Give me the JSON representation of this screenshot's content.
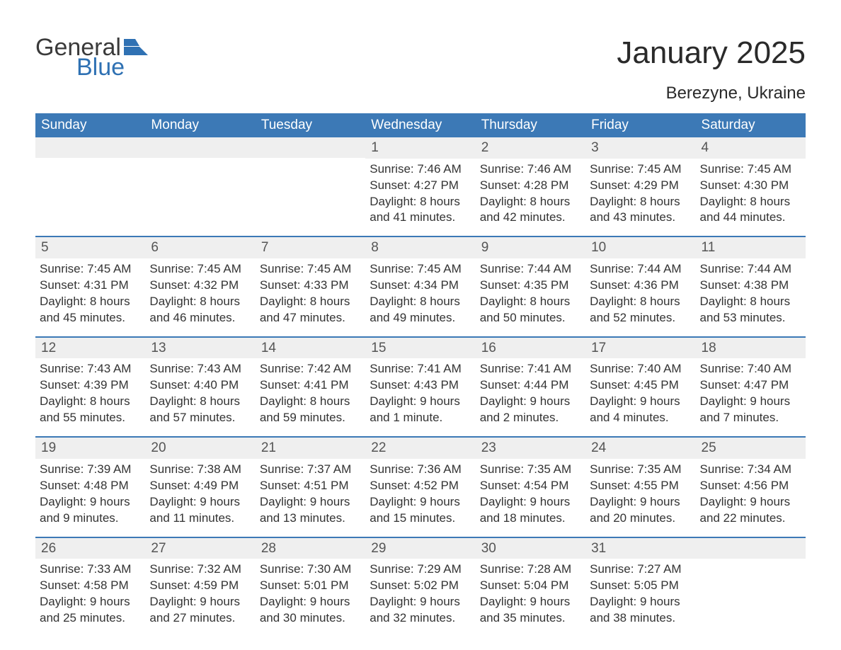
{
  "brand": {
    "word1": "General",
    "word2": "Blue",
    "accent": "#2f71b3"
  },
  "title": "January 2025",
  "location": "Berezyne, Ukraine",
  "colors": {
    "header_bg": "#3c79b6",
    "header_text": "#ffffff",
    "daynum_bg": "#efefef",
    "text": "#333333",
    "rule": "#3c79b6",
    "page_bg": "#ffffff"
  },
  "day_names": [
    "Sunday",
    "Monday",
    "Tuesday",
    "Wednesday",
    "Thursday",
    "Friday",
    "Saturday"
  ],
  "weeks": [
    [
      {
        "n": "",
        "sr": "",
        "ss": "",
        "dl1": "",
        "dl2": ""
      },
      {
        "n": "",
        "sr": "",
        "ss": "",
        "dl1": "",
        "dl2": ""
      },
      {
        "n": "",
        "sr": "",
        "ss": "",
        "dl1": "",
        "dl2": ""
      },
      {
        "n": "1",
        "sr": "Sunrise: 7:46 AM",
        "ss": "Sunset: 4:27 PM",
        "dl1": "Daylight: 8 hours",
        "dl2": "and 41 minutes."
      },
      {
        "n": "2",
        "sr": "Sunrise: 7:46 AM",
        "ss": "Sunset: 4:28 PM",
        "dl1": "Daylight: 8 hours",
        "dl2": "and 42 minutes."
      },
      {
        "n": "3",
        "sr": "Sunrise: 7:45 AM",
        "ss": "Sunset: 4:29 PM",
        "dl1": "Daylight: 8 hours",
        "dl2": "and 43 minutes."
      },
      {
        "n": "4",
        "sr": "Sunrise: 7:45 AM",
        "ss": "Sunset: 4:30 PM",
        "dl1": "Daylight: 8 hours",
        "dl2": "and 44 minutes."
      }
    ],
    [
      {
        "n": "5",
        "sr": "Sunrise: 7:45 AM",
        "ss": "Sunset: 4:31 PM",
        "dl1": "Daylight: 8 hours",
        "dl2": "and 45 minutes."
      },
      {
        "n": "6",
        "sr": "Sunrise: 7:45 AM",
        "ss": "Sunset: 4:32 PM",
        "dl1": "Daylight: 8 hours",
        "dl2": "and 46 minutes."
      },
      {
        "n": "7",
        "sr": "Sunrise: 7:45 AM",
        "ss": "Sunset: 4:33 PM",
        "dl1": "Daylight: 8 hours",
        "dl2": "and 47 minutes."
      },
      {
        "n": "8",
        "sr": "Sunrise: 7:45 AM",
        "ss": "Sunset: 4:34 PM",
        "dl1": "Daylight: 8 hours",
        "dl2": "and 49 minutes."
      },
      {
        "n": "9",
        "sr": "Sunrise: 7:44 AM",
        "ss": "Sunset: 4:35 PM",
        "dl1": "Daylight: 8 hours",
        "dl2": "and 50 minutes."
      },
      {
        "n": "10",
        "sr": "Sunrise: 7:44 AM",
        "ss": "Sunset: 4:36 PM",
        "dl1": "Daylight: 8 hours",
        "dl2": "and 52 minutes."
      },
      {
        "n": "11",
        "sr": "Sunrise: 7:44 AM",
        "ss": "Sunset: 4:38 PM",
        "dl1": "Daylight: 8 hours",
        "dl2": "and 53 minutes."
      }
    ],
    [
      {
        "n": "12",
        "sr": "Sunrise: 7:43 AM",
        "ss": "Sunset: 4:39 PM",
        "dl1": "Daylight: 8 hours",
        "dl2": "and 55 minutes."
      },
      {
        "n": "13",
        "sr": "Sunrise: 7:43 AM",
        "ss": "Sunset: 4:40 PM",
        "dl1": "Daylight: 8 hours",
        "dl2": "and 57 minutes."
      },
      {
        "n": "14",
        "sr": "Sunrise: 7:42 AM",
        "ss": "Sunset: 4:41 PM",
        "dl1": "Daylight: 8 hours",
        "dl2": "and 59 minutes."
      },
      {
        "n": "15",
        "sr": "Sunrise: 7:41 AM",
        "ss": "Sunset: 4:43 PM",
        "dl1": "Daylight: 9 hours",
        "dl2": "and 1 minute."
      },
      {
        "n": "16",
        "sr": "Sunrise: 7:41 AM",
        "ss": "Sunset: 4:44 PM",
        "dl1": "Daylight: 9 hours",
        "dl2": "and 2 minutes."
      },
      {
        "n": "17",
        "sr": "Sunrise: 7:40 AM",
        "ss": "Sunset: 4:45 PM",
        "dl1": "Daylight: 9 hours",
        "dl2": "and 4 minutes."
      },
      {
        "n": "18",
        "sr": "Sunrise: 7:40 AM",
        "ss": "Sunset: 4:47 PM",
        "dl1": "Daylight: 9 hours",
        "dl2": "and 7 minutes."
      }
    ],
    [
      {
        "n": "19",
        "sr": "Sunrise: 7:39 AM",
        "ss": "Sunset: 4:48 PM",
        "dl1": "Daylight: 9 hours",
        "dl2": "and 9 minutes."
      },
      {
        "n": "20",
        "sr": "Sunrise: 7:38 AM",
        "ss": "Sunset: 4:49 PM",
        "dl1": "Daylight: 9 hours",
        "dl2": "and 11 minutes."
      },
      {
        "n": "21",
        "sr": "Sunrise: 7:37 AM",
        "ss": "Sunset: 4:51 PM",
        "dl1": "Daylight: 9 hours",
        "dl2": "and 13 minutes."
      },
      {
        "n": "22",
        "sr": "Sunrise: 7:36 AM",
        "ss": "Sunset: 4:52 PM",
        "dl1": "Daylight: 9 hours",
        "dl2": "and 15 minutes."
      },
      {
        "n": "23",
        "sr": "Sunrise: 7:35 AM",
        "ss": "Sunset: 4:54 PM",
        "dl1": "Daylight: 9 hours",
        "dl2": "and 18 minutes."
      },
      {
        "n": "24",
        "sr": "Sunrise: 7:35 AM",
        "ss": "Sunset: 4:55 PM",
        "dl1": "Daylight: 9 hours",
        "dl2": "and 20 minutes."
      },
      {
        "n": "25",
        "sr": "Sunrise: 7:34 AM",
        "ss": "Sunset: 4:56 PM",
        "dl1": "Daylight: 9 hours",
        "dl2": "and 22 minutes."
      }
    ],
    [
      {
        "n": "26",
        "sr": "Sunrise: 7:33 AM",
        "ss": "Sunset: 4:58 PM",
        "dl1": "Daylight: 9 hours",
        "dl2": "and 25 minutes."
      },
      {
        "n": "27",
        "sr": "Sunrise: 7:32 AM",
        "ss": "Sunset: 4:59 PM",
        "dl1": "Daylight: 9 hours",
        "dl2": "and 27 minutes."
      },
      {
        "n": "28",
        "sr": "Sunrise: 7:30 AM",
        "ss": "Sunset: 5:01 PM",
        "dl1": "Daylight: 9 hours",
        "dl2": "and 30 minutes."
      },
      {
        "n": "29",
        "sr": "Sunrise: 7:29 AM",
        "ss": "Sunset: 5:02 PM",
        "dl1": "Daylight: 9 hours",
        "dl2": "and 32 minutes."
      },
      {
        "n": "30",
        "sr": "Sunrise: 7:28 AM",
        "ss": "Sunset: 5:04 PM",
        "dl1": "Daylight: 9 hours",
        "dl2": "and 35 minutes."
      },
      {
        "n": "31",
        "sr": "Sunrise: 7:27 AM",
        "ss": "Sunset: 5:05 PM",
        "dl1": "Daylight: 9 hours",
        "dl2": "and 38 minutes."
      },
      {
        "n": "",
        "sr": "",
        "ss": "",
        "dl1": "",
        "dl2": ""
      }
    ]
  ]
}
